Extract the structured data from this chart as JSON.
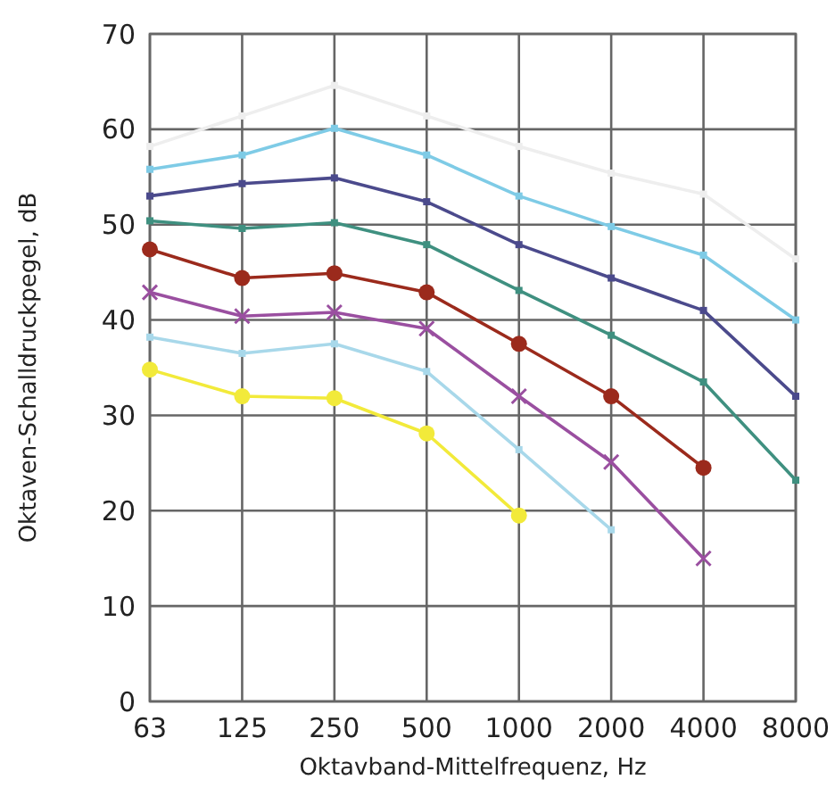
{
  "chart_data": {
    "type": "line",
    "xlabel": "Oktavband-Mittelfrequenz, Hz",
    "ylabel": "Oktaven-Schalldruckpegel, dB",
    "categories": [
      "63",
      "125",
      "250",
      "500",
      "1000",
      "2000",
      "4000",
      "8000"
    ],
    "ylim": [
      0,
      70
    ],
    "yticks": [
      0,
      10,
      20,
      30,
      40,
      50,
      60,
      70
    ],
    "grid": true,
    "series": [
      {
        "color": "#eeeeee",
        "marker": "square",
        "values": [
          58.2,
          61.4,
          64.6,
          61.4,
          58.2,
          55.4,
          53.2,
          46.4
        ]
      },
      {
        "color": "#7ecbe6",
        "marker": "square",
        "values": [
          55.8,
          57.3,
          60.1,
          57.3,
          53,
          49.8,
          46.8,
          40
        ]
      },
      {
        "color": "#4b4a8c",
        "marker": "square",
        "values": [
          53,
          54.3,
          54.9,
          52.4,
          47.9,
          44.4,
          41,
          32
        ]
      },
      {
        "color": "#3f9080",
        "marker": "square",
        "values": [
          50.4,
          49.6,
          50.2,
          47.9,
          43.1,
          38.4,
          33.5,
          23.2
        ]
      },
      {
        "color": "#9b2a1c",
        "marker": "circle",
        "values": [
          47.4,
          44.4,
          44.9,
          42.9,
          37.5,
          32,
          24.5,
          null
        ]
      },
      {
        "color": "#9a4fa0",
        "marker": "cross",
        "values": [
          42.9,
          40.4,
          40.8,
          39.1,
          32,
          25.1,
          15,
          null
        ]
      },
      {
        "color": "#a8d8ea",
        "marker": "square",
        "values": [
          38.2,
          36.5,
          37.5,
          34.6,
          26.4,
          18,
          null,
          null
        ]
      },
      {
        "color": "#f2ea3a",
        "marker": "circle",
        "values": [
          34.8,
          32,
          31.8,
          28.1,
          19.5,
          null,
          null,
          null
        ]
      }
    ]
  }
}
